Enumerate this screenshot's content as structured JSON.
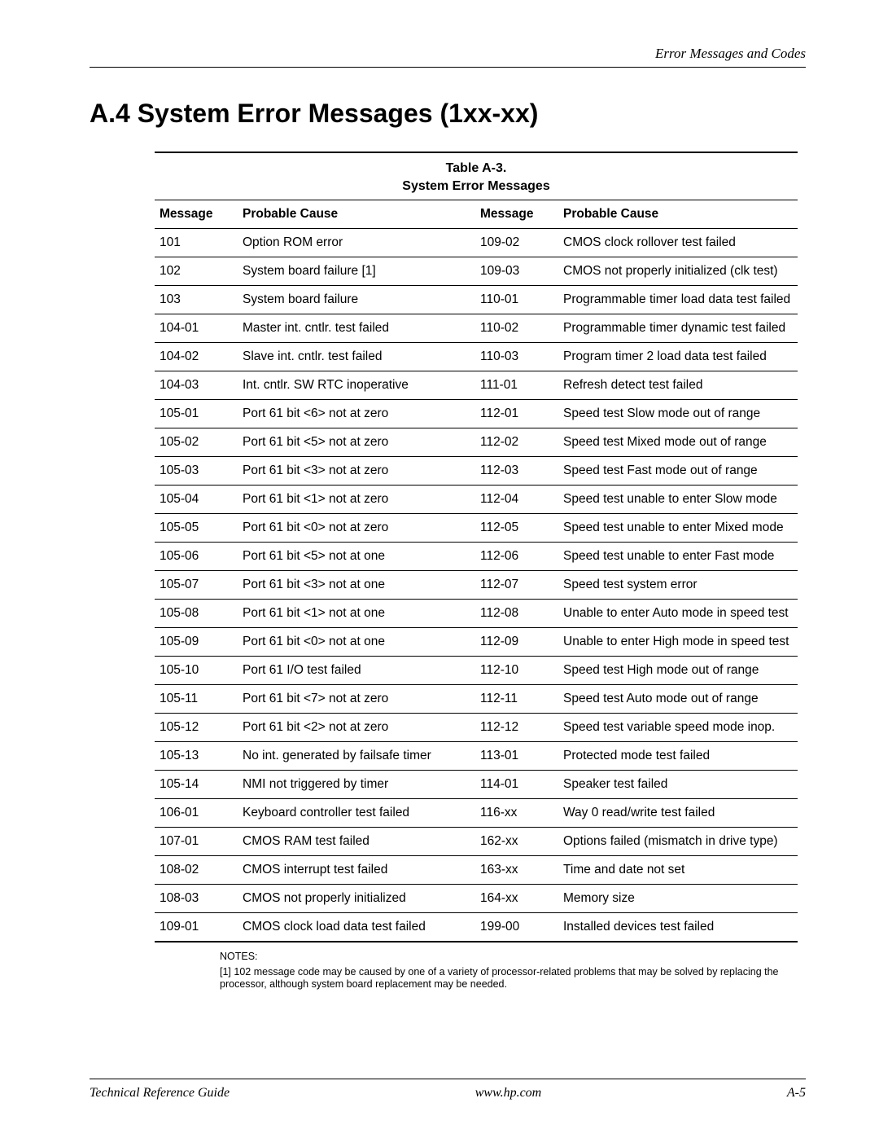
{
  "header": {
    "running_title": "Error Messages and Codes"
  },
  "section": {
    "title": "A.4 System Error Messages (1xx-xx)"
  },
  "table": {
    "caption_line1": "Table A-3.",
    "caption_line2": "System Error Messages",
    "head": {
      "msg_l": "Message",
      "cause_l": "Probable Cause",
      "msg_r": "Message",
      "cause_r": "Probable Cause"
    },
    "rows": [
      {
        "ml": "101",
        "cl": "Option ROM error",
        "mr": "109-02",
        "cr": "CMOS clock rollover test failed"
      },
      {
        "ml": "102",
        "cl": "System board failure    [1]",
        "mr": "109-03",
        "cr": "CMOS not properly initialized (clk test)"
      },
      {
        "ml": "103",
        "cl": "System board failure",
        "mr": "110-01",
        "cr": "Programmable timer load data test failed"
      },
      {
        "ml": "104-01",
        "cl": "Master int. cntlr. test failed",
        "mr": "110-02",
        "cr": "Programmable timer dynamic test failed"
      },
      {
        "ml": "104-02",
        "cl": "Slave int. cntlr. test failed",
        "mr": "110-03",
        "cr": "Program timer 2 load data test failed"
      },
      {
        "ml": "104-03",
        "cl": "Int. cntlr. SW RTC inoperative",
        "mr": "111-01",
        "cr": "Refresh detect test failed"
      },
      {
        "ml": "105-01",
        "cl": "Port 61 bit <6> not at zero",
        "mr": "112-01",
        "cr": "Speed test Slow mode out of range"
      },
      {
        "ml": "105-02",
        "cl": "Port 61 bit <5> not at zero",
        "mr": "112-02",
        "cr": "Speed test Mixed mode out of range"
      },
      {
        "ml": "105-03",
        "cl": "Port 61 bit <3> not at zero",
        "mr": "112-03",
        "cr": "Speed test Fast mode out of range"
      },
      {
        "ml": "105-04",
        "cl": "Port 61 bit <1> not at zero",
        "mr": "112-04",
        "cr": "Speed test unable to enter Slow mode"
      },
      {
        "ml": "105-05",
        "cl": "Port 61 bit <0> not at zero",
        "mr": "112-05",
        "cr": "Speed test unable to enter Mixed mode"
      },
      {
        "ml": "105-06",
        "cl": "Port 61 bit <5> not at one",
        "mr": "112-06",
        "cr": "Speed test unable to enter Fast mode"
      },
      {
        "ml": "105-07",
        "cl": "Port 61 bit <3> not at one",
        "mr": "112-07",
        "cr": "Speed test system error"
      },
      {
        "ml": "105-08",
        "cl": "Port 61 bit <1> not at one",
        "mr": "112-08",
        "cr": "Unable to enter Auto mode in speed test"
      },
      {
        "ml": "105-09",
        "cl": "Port 61 bit <0> not at one",
        "mr": "112-09",
        "cr": "Unable to enter High mode in speed test"
      },
      {
        "ml": "105-10",
        "cl": "Port 61 I/O test failed",
        "mr": "112-10",
        "cr": "Speed test High mode out of range"
      },
      {
        "ml": "105-11",
        "cl": "Port 61 bit <7> not at zero",
        "mr": "112-11",
        "cr": "Speed test Auto mode out of range"
      },
      {
        "ml": "105-12",
        "cl": "Port 61 bit <2> not at zero",
        "mr": "112-12",
        "cr": "Speed test variable speed mode inop."
      },
      {
        "ml": "105-13",
        "cl": "No int. generated by failsafe timer",
        "mr": "113-01",
        "cr": "Protected mode test failed"
      },
      {
        "ml": "105-14",
        "cl": "NMI not triggered by timer",
        "mr": "114-01",
        "cr": "Speaker test failed"
      },
      {
        "ml": "106-01",
        "cl": "Keyboard controller test failed",
        "mr": "116-xx",
        "cr": "Way 0 read/write test failed"
      },
      {
        "ml": "107-01",
        "cl": "CMOS RAM test failed",
        "mr": "162-xx",
        "cr": "Options failed (mismatch in drive type)"
      },
      {
        "ml": "108-02",
        "cl": "CMOS interrupt test failed",
        "mr": "163-xx",
        "cr": "Time and date not set"
      },
      {
        "ml": "108-03",
        "cl": "CMOS not properly initialized",
        "mr": "164-xx",
        "cr": "Memory size"
      },
      {
        "ml": "109-01",
        "cl": "CMOS clock load data test failed",
        "mr": "199-00",
        "cr": "Installed devices test failed"
      }
    ]
  },
  "notes": {
    "label": "NOTES:",
    "body": "[1] 102 message code may be caused by one of a variety of processor-related problems that may be solved by replacing the processor, although system board replacement may be needed."
  },
  "footer": {
    "left": "Technical Reference Guide",
    "center": "www.hp.com",
    "right": "A-5"
  }
}
